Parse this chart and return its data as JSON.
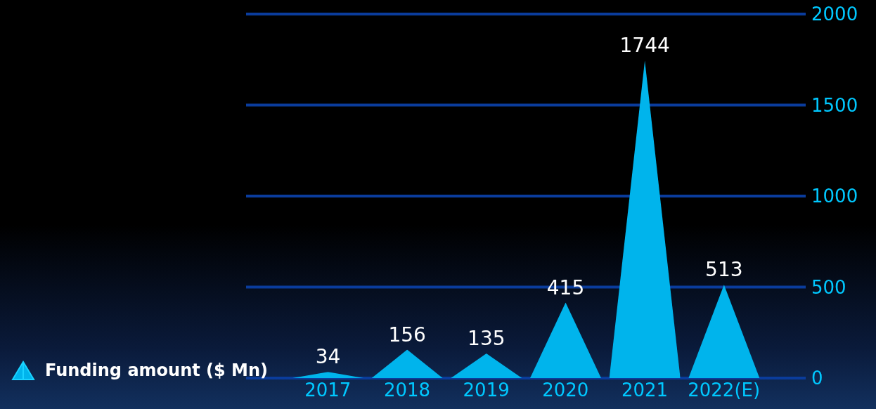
{
  "chart_data": {
    "type": "bar",
    "categories": [
      "2017",
      "2018",
      "2019",
      "2020",
      "2021",
      "2022(E)"
    ],
    "series": [
      {
        "name": "Funding amount ($ Mn)",
        "color": "#00b4ec",
        "values": [
          34,
          156,
          135,
          415,
          1744,
          513
        ]
      }
    ],
    "ylim": [
      0,
      2000
    ],
    "yticks": [
      0,
      500,
      1000,
      1500,
      2000
    ],
    "grid": "y",
    "legend": "bottom left",
    "data_labels": true
  }
}
